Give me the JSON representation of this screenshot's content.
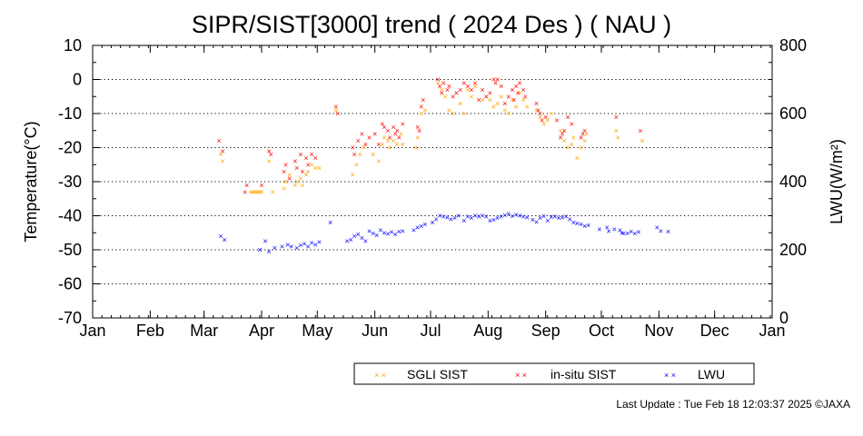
{
  "chart_data": {
    "type": "scatter",
    "title": "SIPR/SIST[3000] trend ( 2024 Des ) ( NAU )",
    "ylabel": "Temperature(°C)",
    "y2label": "LWU(W/m²)",
    "ylim": [
      -70,
      10
    ],
    "y2lim": [
      0,
      800
    ],
    "yticks": [
      "10",
      "0",
      "-10",
      "-20",
      "-30",
      "-40",
      "-50",
      "-60",
      "-70"
    ],
    "y2ticks": [
      "800",
      "600",
      "400",
      "200",
      "0"
    ],
    "xticks": [
      "Jan",
      "Feb",
      "Mar",
      "Apr",
      "May",
      "Jun",
      "Jul",
      "Aug",
      "Sep",
      "Oct",
      "Nov",
      "Dec",
      "Jan"
    ],
    "grid": "horizontal dotted at 10°C steps",
    "legend_position": "bottom-right, below plot",
    "x_unit": "day of year",
    "series": [
      {
        "name": "SGLI SIST",
        "color": "#ffa500",
        "axis": "left",
        "points": [
          [
            70,
            -22
          ],
          [
            71,
            -24
          ],
          [
            86,
            -33
          ],
          [
            87,
            -33
          ],
          [
            88,
            -33
          ],
          [
            89,
            -33
          ],
          [
            90,
            -33
          ],
          [
            91,
            -33
          ],
          [
            92,
            -33
          ],
          [
            96,
            -24
          ],
          [
            98,
            -33
          ],
          [
            104,
            -32
          ],
          [
            105,
            -30
          ],
          [
            107,
            -28
          ],
          [
            110,
            -31
          ],
          [
            111,
            -30
          ],
          [
            113,
            -29
          ],
          [
            114,
            -31
          ],
          [
            116,
            -28
          ],
          [
            117,
            -27
          ],
          [
            119,
            -25
          ],
          [
            121,
            -26
          ],
          [
            123,
            -26
          ],
          [
            132,
            -9
          ],
          [
            141,
            -28
          ],
          [
            143,
            -25
          ],
          [
            145,
            -22
          ],
          [
            147,
            -20
          ],
          [
            152,
            -22
          ],
          [
            155,
            -24
          ],
          [
            157,
            -19
          ],
          [
            158,
            -17
          ],
          [
            160,
            -18
          ],
          [
            161,
            -20
          ],
          [
            163,
            -18
          ],
          [
            165,
            -19
          ],
          [
            167,
            -16
          ],
          [
            168,
            -19
          ],
          [
            175,
            -20
          ],
          [
            176,
            -17
          ],
          [
            178,
            -10
          ],
          [
            180,
            -9
          ],
          [
            187,
            -1
          ],
          [
            189,
            -3
          ],
          [
            191,
            -5
          ],
          [
            193,
            -9
          ],
          [
            195,
            -10
          ],
          [
            197,
            -4
          ],
          [
            199,
            -7
          ],
          [
            201,
            -10
          ],
          [
            203,
            -3
          ],
          [
            205,
            -5
          ],
          [
            207,
            -2
          ],
          [
            211,
            -6
          ],
          [
            213,
            -5
          ],
          [
            215,
            -6
          ],
          [
            217,
            -8
          ],
          [
            219,
            -7
          ],
          [
            221,
            -5
          ],
          [
            223,
            -9
          ],
          [
            225,
            -10
          ],
          [
            227,
            -6
          ],
          [
            229,
            -8
          ],
          [
            231,
            -4
          ],
          [
            233,
            -6
          ],
          [
            235,
            -8
          ],
          [
            240,
            -9
          ],
          [
            242,
            -11
          ],
          [
            244,
            -13
          ],
          [
            246,
            -12
          ],
          [
            248,
            -10
          ],
          [
            253,
            -15
          ],
          [
            255,
            -18
          ],
          [
            257,
            -20
          ],
          [
            259,
            -19
          ],
          [
            260,
            -17
          ],
          [
            262,
            -23
          ],
          [
            264,
            -20
          ],
          [
            266,
            -18
          ],
          [
            267,
            -16
          ],
          [
            283,
            -15
          ],
          [
            284,
            -17
          ],
          [
            297,
            -18
          ]
        ]
      },
      {
        "name": "in-situ SIST",
        "color": "#ff0000",
        "axis": "left",
        "points": [
          [
            69,
            -18
          ],
          [
            71,
            -21
          ],
          [
            83,
            -33
          ],
          [
            84,
            -31
          ],
          [
            92,
            -31
          ],
          [
            96,
            -21
          ],
          [
            97,
            -22
          ],
          [
            104,
            -27
          ],
          [
            105,
            -25
          ],
          [
            107,
            -29
          ],
          [
            110,
            -24
          ],
          [
            111,
            -26
          ],
          [
            113,
            -22
          ],
          [
            114,
            -27
          ],
          [
            116,
            -23
          ],
          [
            117,
            -25
          ],
          [
            119,
            -22
          ],
          [
            121,
            -23
          ],
          [
            132,
            -8
          ],
          [
            133,
            -10
          ],
          [
            141,
            -20
          ],
          [
            142,
            -22
          ],
          [
            144,
            -18
          ],
          [
            146,
            -16
          ],
          [
            148,
            -19
          ],
          [
            150,
            -17
          ],
          [
            153,
            -16
          ],
          [
            155,
            -19
          ],
          [
            157,
            -13
          ],
          [
            158,
            -14
          ],
          [
            160,
            -15
          ],
          [
            161,
            -17
          ],
          [
            163,
            -14
          ],
          [
            164,
            -16
          ],
          [
            165,
            -15
          ],
          [
            166,
            -17
          ],
          [
            168,
            -13
          ],
          [
            176,
            -14
          ],
          [
            177,
            -15
          ],
          [
            178,
            -8
          ],
          [
            179,
            -6
          ],
          [
            187,
            0
          ],
          [
            188,
            -2
          ],
          [
            189,
            -4
          ],
          [
            190,
            -1
          ],
          [
            192,
            -3
          ],
          [
            193,
            -2
          ],
          [
            195,
            -5
          ],
          [
            197,
            -4
          ],
          [
            199,
            -3
          ],
          [
            201,
            -1
          ],
          [
            203,
            -2
          ],
          [
            205,
            -3
          ],
          [
            207,
            -1
          ],
          [
            209,
            -6
          ],
          [
            211,
            -3
          ],
          [
            213,
            -5
          ],
          [
            215,
            -4
          ],
          [
            217,
            0
          ],
          [
            218,
            -1
          ],
          [
            219,
            0
          ],
          [
            221,
            -2
          ],
          [
            223,
            -7
          ],
          [
            225,
            -5
          ],
          [
            227,
            -3
          ],
          [
            228,
            -6
          ],
          [
            229,
            -2
          ],
          [
            230,
            -4
          ],
          [
            231,
            -1
          ],
          [
            233,
            -3
          ],
          [
            234,
            -5
          ],
          [
            240,
            -7
          ],
          [
            241,
            -9
          ],
          [
            242,
            -10
          ],
          [
            243,
            -12
          ],
          [
            245,
            -11
          ],
          [
            251,
            -12
          ],
          [
            253,
            -17
          ],
          [
            254,
            -16
          ],
          [
            255,
            -15
          ],
          [
            257,
            -11
          ],
          [
            259,
            -13
          ],
          [
            264,
            -17
          ],
          [
            265,
            -16
          ],
          [
            266,
            -15
          ],
          [
            283,
            -11
          ],
          [
            296,
            -15
          ]
        ]
      },
      {
        "name": "LWU",
        "color": "#0000ff",
        "axis": "right",
        "points": [
          [
            70,
            240
          ],
          [
            72,
            230
          ],
          [
            91,
            200
          ],
          [
            94,
            225
          ],
          [
            96,
            195
          ],
          [
            99,
            205
          ],
          [
            103,
            210
          ],
          [
            106,
            215
          ],
          [
            108,
            210
          ],
          [
            111,
            205
          ],
          [
            113,
            213
          ],
          [
            115,
            218
          ],
          [
            117,
            210
          ],
          [
            119,
            220
          ],
          [
            121,
            215
          ],
          [
            123,
            223
          ],
          [
            129,
            280
          ],
          [
            138,
            225
          ],
          [
            140,
            230
          ],
          [
            142,
            240
          ],
          [
            144,
            245
          ],
          [
            146,
            235
          ],
          [
            148,
            225
          ],
          [
            150,
            255
          ],
          [
            152,
            248
          ],
          [
            154,
            243
          ],
          [
            156,
            258
          ],
          [
            158,
            250
          ],
          [
            160,
            247
          ],
          [
            162,
            252
          ],
          [
            164,
            245
          ],
          [
            166,
            253
          ],
          [
            168,
            255
          ],
          [
            174,
            258
          ],
          [
            176,
            265
          ],
          [
            178,
            270
          ],
          [
            180,
            275
          ],
          [
            184,
            280
          ],
          [
            186,
            290
          ],
          [
            188,
            300
          ],
          [
            190,
            298
          ],
          [
            192,
            295
          ],
          [
            194,
            290
          ],
          [
            196,
            293
          ],
          [
            198,
            300
          ],
          [
            201,
            285
          ],
          [
            203,
            297
          ],
          [
            205,
            294
          ],
          [
            207,
            300
          ],
          [
            209,
            297
          ],
          [
            211,
            300
          ],
          [
            213,
            298
          ],
          [
            215,
            285
          ],
          [
            217,
            288
          ],
          [
            219,
            294
          ],
          [
            221,
            297
          ],
          [
            223,
            301
          ],
          [
            225,
            306
          ],
          [
            227,
            299
          ],
          [
            229,
            303
          ],
          [
            231,
            300
          ],
          [
            233,
            297
          ],
          [
            235,
            295
          ],
          [
            238,
            288
          ],
          [
            240,
            282
          ],
          [
            242,
            294
          ],
          [
            244,
            299
          ],
          [
            246,
            285
          ],
          [
            248,
            296
          ],
          [
            250,
            298
          ],
          [
            252,
            293
          ],
          [
            254,
            295
          ],
          [
            256,
            298
          ],
          [
            258,
            290
          ],
          [
            260,
            280
          ],
          [
            262,
            278
          ],
          [
            264,
            275
          ],
          [
            266,
            270
          ],
          [
            268,
            272
          ],
          [
            274,
            260
          ],
          [
            278,
            265
          ],
          [
            279,
            255
          ],
          [
            282,
            260
          ],
          [
            285,
            258
          ],
          [
            286,
            250
          ],
          [
            287,
            248
          ],
          [
            289,
            248
          ],
          [
            291,
            253
          ],
          [
            293,
            248
          ],
          [
            295,
            252
          ],
          [
            305,
            265
          ],
          [
            307,
            255
          ],
          [
            311,
            254
          ]
        ]
      }
    ]
  },
  "footer": {
    "last_update": "Last Update : Tue Feb 18 12:03:37 2025  ©JAXA"
  }
}
